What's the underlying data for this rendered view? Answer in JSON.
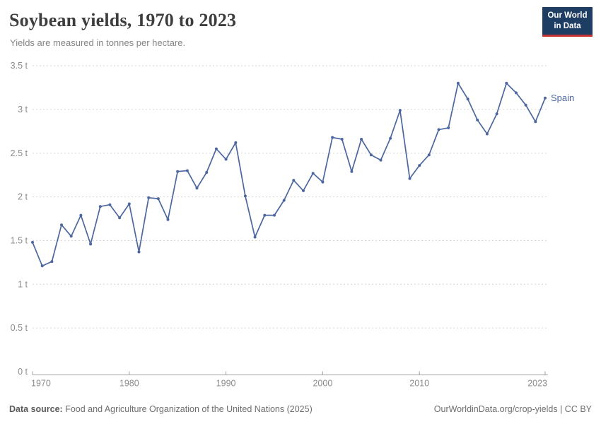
{
  "header": {
    "title": "Soybean yields, 1970 to 2023",
    "subtitle": "Yields are measured in tonnes per hectare.",
    "logo_line1": "Our World",
    "logo_line2": "in Data",
    "logo_colors": {
      "background": "#1d3d63",
      "bar": "#c5352f",
      "text": "#ffffff"
    }
  },
  "chart_data": {
    "type": "line",
    "title": "Soybean yields, 1970 to 2023",
    "ylabel": "",
    "xlabel": "",
    "unit": "t",
    "xlim": [
      1970,
      2023
    ],
    "ylim": [
      0,
      3.5
    ],
    "grid": "horizontal-dashed",
    "legend_position": "end-of-line",
    "x_ticks": [
      1970,
      1980,
      1990,
      2000,
      2010,
      2023
    ],
    "y_ticks": [
      0,
      0.5,
      1,
      1.5,
      2,
      2.5,
      3,
      3.5
    ],
    "y_tick_labels": [
      "0 t",
      "0.5 t",
      "1 t",
      "1.5 t",
      "2 t",
      "2.5 t",
      "3 t",
      "3.5 t"
    ],
    "colors": {
      "line": "#4c679f",
      "grid": "#d6d6d6",
      "axis": "#a1a1a1",
      "tick_label": "#8b8b8b"
    },
    "series": [
      {
        "name": "Spain",
        "color": "#4c679f",
        "x": [
          1970,
          1971,
          1972,
          1973,
          1974,
          1975,
          1976,
          1977,
          1978,
          1979,
          1980,
          1981,
          1982,
          1983,
          1984,
          1985,
          1986,
          1987,
          1988,
          1989,
          1990,
          1991,
          1992,
          1993,
          1994,
          1995,
          1996,
          1997,
          1998,
          1999,
          2000,
          2001,
          2002,
          2003,
          2004,
          2005,
          2006,
          2007,
          2008,
          2009,
          2010,
          2011,
          2012,
          2013,
          2014,
          2015,
          2016,
          2017,
          2018,
          2019,
          2020,
          2021,
          2022,
          2023
        ],
        "values": [
          1.48,
          1.21,
          1.26,
          1.68,
          1.55,
          1.79,
          1.46,
          1.89,
          1.91,
          1.76,
          1.92,
          1.37,
          1.99,
          1.98,
          1.74,
          2.29,
          2.3,
          2.1,
          2.28,
          2.55,
          2.43,
          2.62,
          2.01,
          1.54,
          1.79,
          1.79,
          1.96,
          2.19,
          2.07,
          2.27,
          2.17,
          2.68,
          2.66,
          2.29,
          2.66,
          2.48,
          2.42,
          2.67,
          2.99,
          2.21,
          2.36,
          2.48,
          2.77,
          2.79,
          3.3,
          3.12,
          2.88,
          2.72,
          2.95,
          3.3,
          3.19,
          3.05,
          2.86,
          3.13
        ]
      }
    ]
  },
  "footer": {
    "source_label": "Data source:",
    "source_text": "Food and Agriculture Organization of the United Nations (2025)",
    "credit": "OurWorldinData.org/crop-yields | CC BY"
  }
}
